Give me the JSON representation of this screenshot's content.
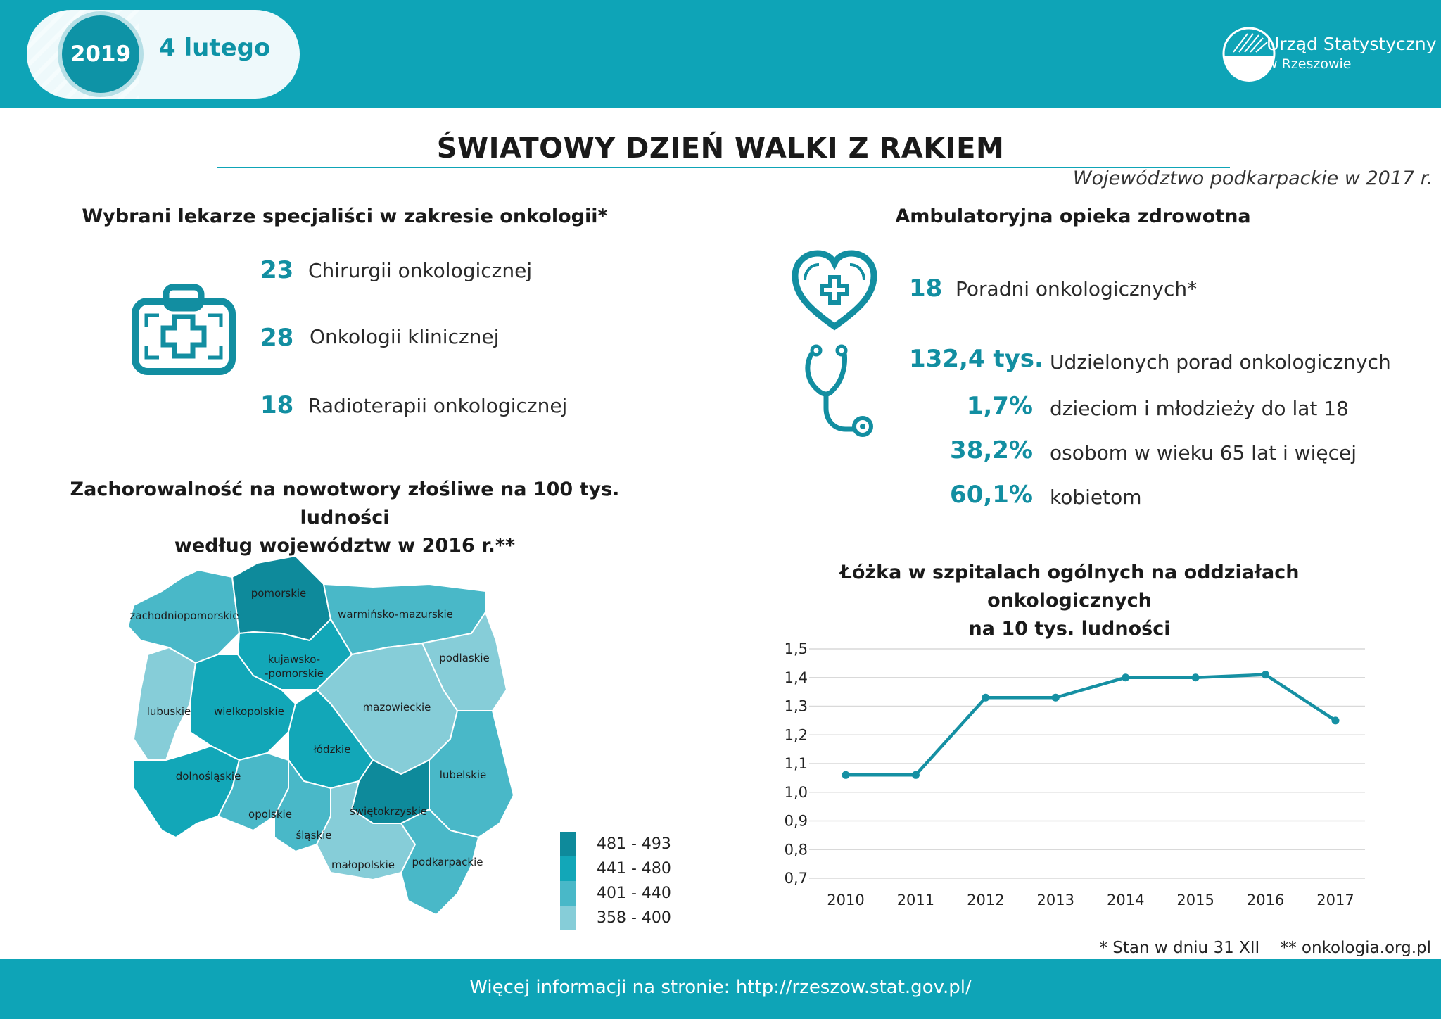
{
  "header": {
    "year": "2019",
    "date": "4 lutego",
    "logo_line1": "Urząd Statystyczny",
    "logo_line2": "w Rzeszowie"
  },
  "title": "ŚWIATOWY DZIEŃ WALKI Z RAKIEM",
  "subtitle": "Województwo podkarpackie w 2017 r.",
  "doctors": {
    "title": "Wybrani lekarze specjaliści w zakresie onkologii*",
    "icon": "medical-kit-icon",
    "items": [
      {
        "value": "23",
        "label": "Chirurgii onkologicznej"
      },
      {
        "value": "28",
        "label": "Onkologii klinicznej"
      },
      {
        "value": "18",
        "label": "Radioterapii onkologicznej"
      }
    ]
  },
  "ambulatory": {
    "title": "Ambulatoryjna opieka zdrowotna",
    "clinics": {
      "value": "18",
      "label": "Poradni onkologicznych*",
      "icon": "heart-cross-icon"
    },
    "consultations": {
      "value": "132,4 tys.",
      "label": "Udzielonych porad onkologicznych",
      "icon": "stethoscope-icon"
    },
    "shares": [
      {
        "value": "1,7%",
        "label": "dzieciom i młodzieży do lat 18"
      },
      {
        "value": "38,2%",
        "label": "osobom w wieku 65 lat i więcej"
      },
      {
        "value": "60,1%",
        "label": "kobietom"
      }
    ]
  },
  "incidence": {
    "title_line1": "Zachorowalność na nowotwory złośliwe na 100 tys. ludności",
    "title_line2": "według województw w 2016 r.**",
    "legend": [
      {
        "range": "481 - 493",
        "color": "#0e8a9b"
      },
      {
        "range": "441 - 480",
        "color": "#12a7b8"
      },
      {
        "range": "401 - 440",
        "color": "#49b8c8"
      },
      {
        "range": "358 - 400",
        "color": "#86cdd8"
      }
    ],
    "regions": {
      "pomorskie": "pomorskie",
      "zachodniopomorskie": "zachodniopomorskie",
      "warminsko": "warmińsko-mazurskie",
      "kujawsko1": "kujawsko-",
      "kujawsko2": "-pomorskie",
      "podlaskie": "podlaskie",
      "lubuskie": "lubuskie",
      "wielkopolskie": "wielkopolskie",
      "mazowieckie": "mazowieckie",
      "lodzkie": "łódzkie",
      "dolnoslaskie": "dolnośląskie",
      "lubelskie": "lubelskie",
      "opolskie": "opolskie",
      "swietokrzyskie": "świętokrzyskie",
      "slaskie": "śląskie",
      "malopolskie": "małopolskie",
      "podkarpackie": "podkarpackie"
    }
  },
  "chart_data": {
    "type": "line",
    "title": "Łóżka w szpitalach ogólnych na oddziałach onkologicznych na 10 tys. ludności",
    "title_line1": "Łóżka w szpitalach ogólnych na oddziałach onkologicznych",
    "title_line2": "na 10 tys. ludności",
    "x": [
      "2010",
      "2011",
      "2012",
      "2013",
      "2014",
      "2015",
      "2016",
      "2017"
    ],
    "series": [
      {
        "values": [
          1.06,
          1.06,
          1.33,
          1.33,
          1.4,
          1.4,
          1.41,
          1.25
        ]
      }
    ],
    "ylim": [
      0.7,
      1.5
    ],
    "yticks": [
      "0,7",
      "0,8",
      "0,9",
      "1,0",
      "1,1",
      "1,2",
      "1,3",
      "1,4",
      "1,5"
    ],
    "grid": true,
    "color": "#1590a3"
  },
  "footnote": "* Stan w dniu 31 XII    ** onkologia.org.pl",
  "footer": "Więcej informacji na stronie: http://rzeszow.stat.gov.pl/"
}
